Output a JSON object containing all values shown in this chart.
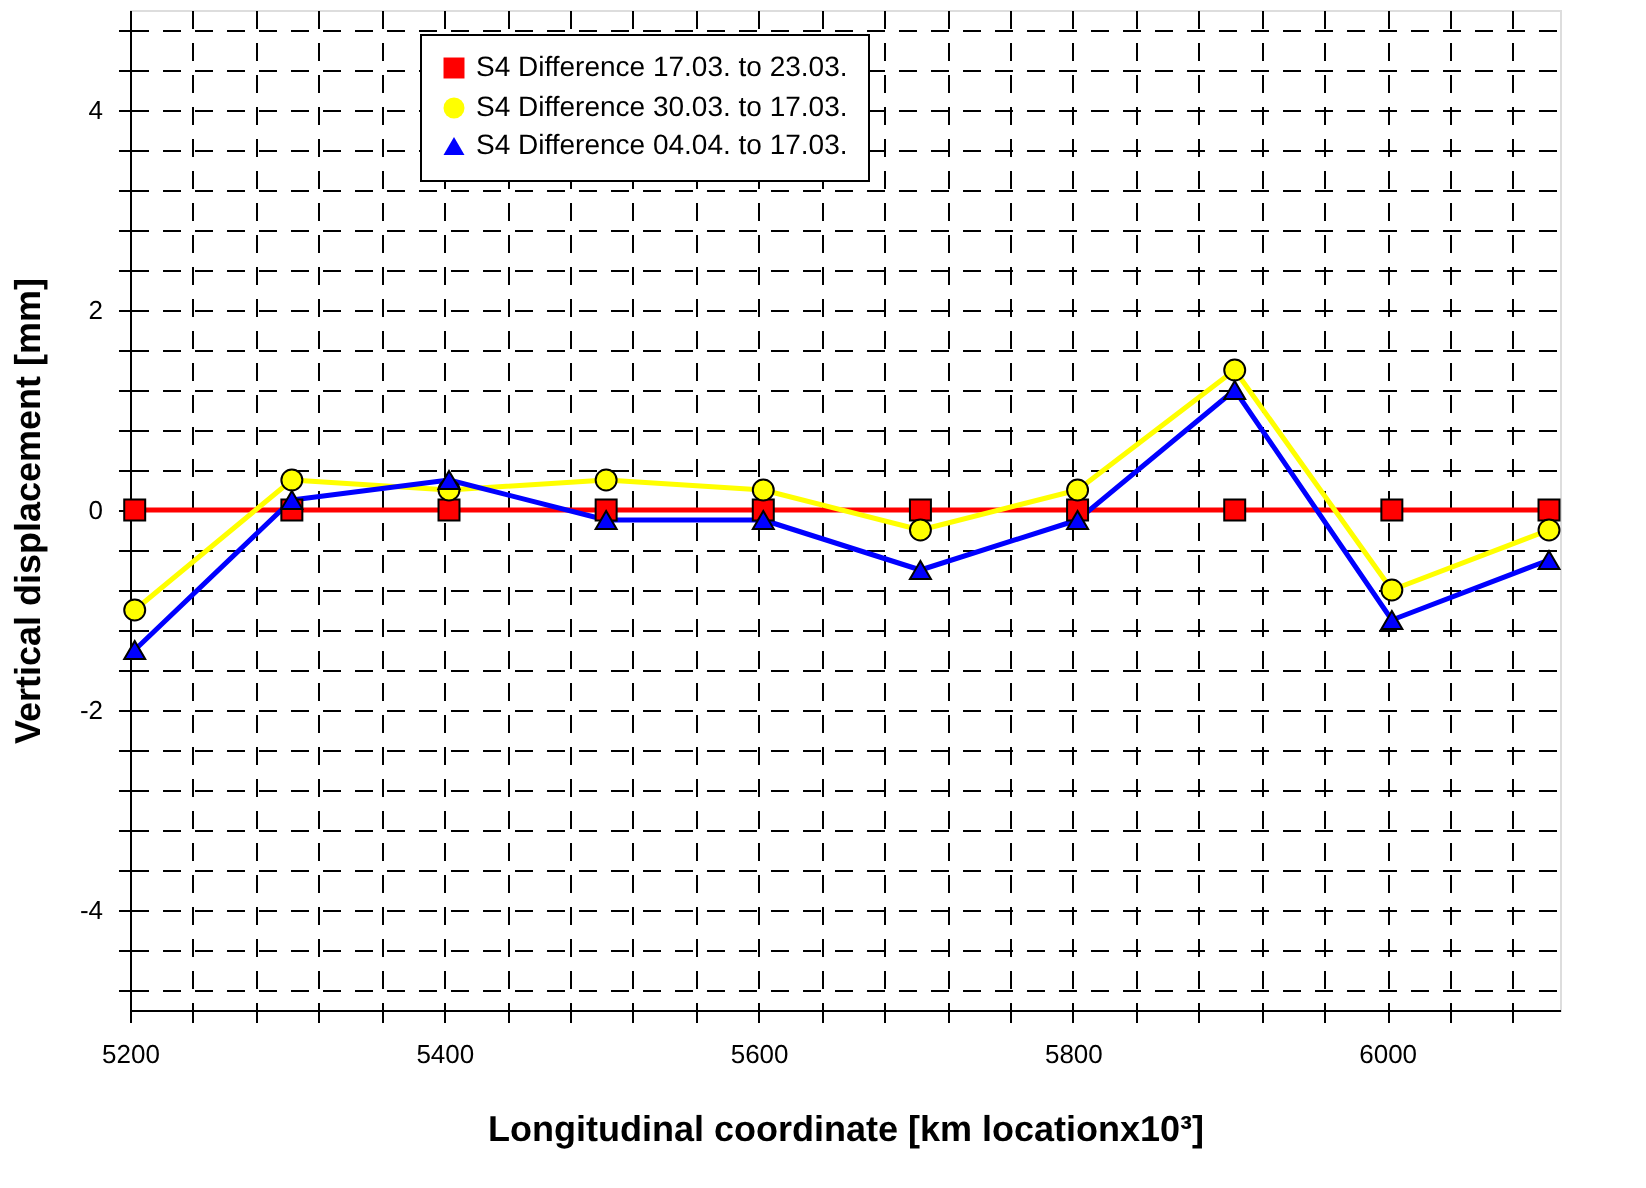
{
  "chart_data": {
    "type": "line",
    "xlabel": "Longitudinal coordinate [km locationx10³]",
    "ylabel": "Vertical displacement [mm]",
    "x": [
      5203,
      5303,
      5403,
      5503,
      5603,
      5703,
      5803,
      5903,
      6003,
      6103
    ],
    "series": [
      {
        "name": "S4 Difference 17.03. to 23.03.",
        "color": "#ff0000",
        "marker": "square",
        "values": [
          0,
          0,
          0,
          0,
          0,
          0,
          0,
          0,
          0,
          0
        ]
      },
      {
        "name": "S4 Difference 30.03. to 17.03.",
        "color": "#ffff00",
        "marker": "circle",
        "values": [
          -1.0,
          0.3,
          0.2,
          0.3,
          0.2,
          -0.2,
          0.2,
          1.4,
          -0.8,
          -0.2
        ]
      },
      {
        "name": "S4 Difference 04.04. to 17.03.",
        "color": "#0000ff",
        "marker": "triangle",
        "values": [
          -1.4,
          0.1,
          0.3,
          -0.1,
          -0.1,
          -0.6,
          -0.1,
          1.2,
          -1.1,
          -0.5
        ]
      }
    ],
    "xlim": [
      5200,
      6110
    ],
    "ylim": [
      -5,
      5
    ],
    "xticks": [
      5200,
      {
        "value": 5240,
        "label": null
      },
      {
        "value": 5280,
        "label": null
      },
      {
        "value": 5320,
        "label": null
      },
      {
        "value": 5360,
        "label": null
      },
      5400,
      {
        "value": 5440,
        "label": null
      },
      {
        "value": 5480,
        "label": null
      },
      {
        "value": 5520,
        "label": null
      },
      {
        "value": 5560,
        "label": null
      },
      5600,
      {
        "value": 5640,
        "label": null
      },
      {
        "value": 5680,
        "label": null
      },
      {
        "value": 5720,
        "label": null
      },
      {
        "value": 5760,
        "label": null
      },
      5800,
      {
        "value": 5840,
        "label": null
      },
      {
        "value": 5880,
        "label": null
      },
      {
        "value": 5920,
        "label": null
      },
      {
        "value": 5960,
        "label": null
      },
      6000,
      {
        "value": 6040,
        "label": null
      },
      {
        "value": 6080,
        "label": null
      }
    ],
    "yticks": [
      {
        "value": -4.8,
        "label": null
      },
      {
        "value": -4.4,
        "label": null
      },
      -4,
      {
        "value": -3.6,
        "label": null
      },
      {
        "value": -3.2,
        "label": null
      },
      {
        "value": -2.8,
        "label": null
      },
      {
        "value": -2.4,
        "label": null
      },
      -2,
      {
        "value": -1.6,
        "label": null
      },
      {
        "value": -1.2,
        "label": null
      },
      {
        "value": -0.8,
        "label": null
      },
      {
        "value": -0.4,
        "label": null
      },
      0,
      {
        "value": 0.4,
        "label": null
      },
      {
        "value": 0.8,
        "label": null
      },
      {
        "value": 1.2,
        "label": null
      },
      {
        "value": 1.6,
        "label": null
      },
      2,
      {
        "value": 2.4,
        "label": null
      },
      {
        "value": 2.8,
        "label": null
      },
      {
        "value": 3.2,
        "label": null
      },
      {
        "value": 3.6,
        "label": null
      },
      4,
      {
        "value": 4.4,
        "label": null
      },
      {
        "value": 4.8,
        "label": null
      }
    ],
    "grid": true,
    "legend": "top",
    "line_style": "solid"
  }
}
